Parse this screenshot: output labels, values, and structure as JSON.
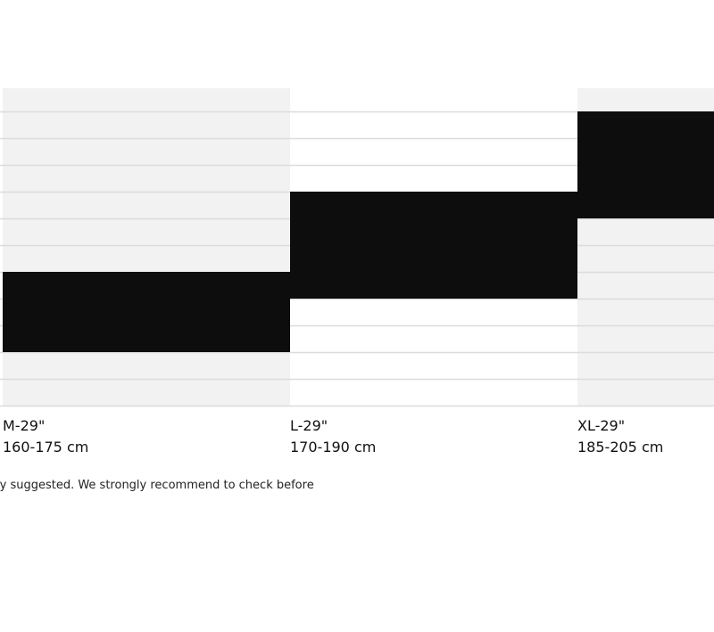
{
  "chart_data": {
    "type": "bar",
    "orientation": "floating-range",
    "categories": [
      "M-29\"",
      "L-29\"",
      "XL-29\""
    ],
    "range_labels": [
      "160-175 cm",
      "170-190 cm",
      "185-205 cm"
    ],
    "series": [
      {
        "values": [
          [
            160,
            175
          ],
          [
            170,
            190
          ],
          [
            185,
            205
          ]
        ]
      }
    ],
    "ylim": [
      150,
      205
    ],
    "y_grid_step": 5,
    "grid": true,
    "column_shading": [
      "#f2f2f2",
      "#ffffff",
      "#f2f2f2"
    ],
    "bar_color": "#0d0d0d",
    "grid_color": "#dcdcdc"
  },
  "footnote": "ly suggested. We strongly recommend to check before"
}
